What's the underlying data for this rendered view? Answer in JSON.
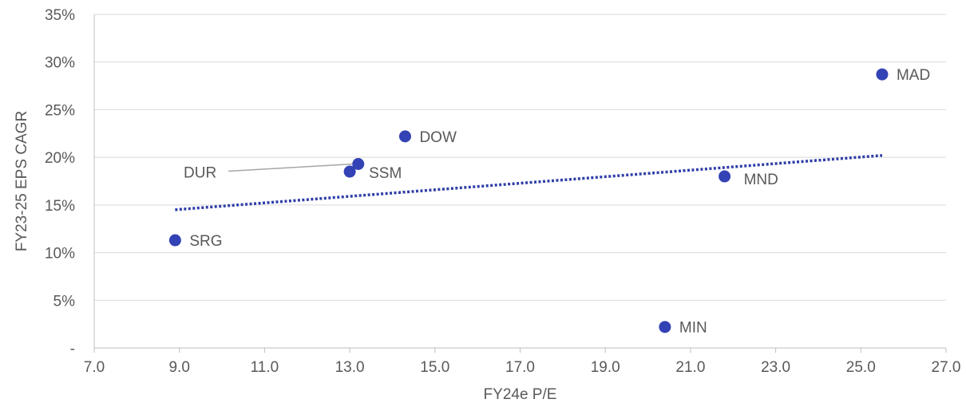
{
  "chart_data": {
    "type": "scatter",
    "title": "",
    "xlabel": "FY24e P/E",
    "ylabel": "FY23-25 EPS CAGR",
    "xlim": [
      7.0,
      27.0
    ],
    "ylim": [
      0,
      35
    ],
    "x_ticks": [
      "7.0",
      "9.0",
      "11.0",
      "13.0",
      "15.0",
      "17.0",
      "19.0",
      "21.0",
      "23.0",
      "25.0",
      "27.0"
    ],
    "x_tick_values": [
      7,
      9,
      11,
      13,
      15,
      17,
      19,
      21,
      23,
      25,
      27
    ],
    "y_ticks": [
      "-",
      "5%",
      "10%",
      "15%",
      "20%",
      "25%",
      "30%",
      "35%"
    ],
    "y_tick_values": [
      0,
      5,
      10,
      15,
      20,
      25,
      30,
      35
    ],
    "grid": true,
    "point_color": "#3342b5",
    "trendline": {
      "style": "dotted",
      "color": "#2f3ea8",
      "x": [
        8.9,
        25.5
      ],
      "y": [
        14.5,
        20.2
      ]
    },
    "points": [
      {
        "label": "SRG",
        "x": 8.9,
        "y": 11.3
      },
      {
        "label": "SSM",
        "x": 13.0,
        "y": 18.5
      },
      {
        "label": "DUR",
        "x": 13.2,
        "y": 19.3
      },
      {
        "label": "DOW",
        "x": 14.3,
        "y": 22.2
      },
      {
        "label": "MIN",
        "x": 20.4,
        "y": 2.2
      },
      {
        "label": "MND",
        "x": 21.8,
        "y": 18.0
      },
      {
        "label": "MAD",
        "x": 25.5,
        "y": 28.7
      }
    ]
  }
}
